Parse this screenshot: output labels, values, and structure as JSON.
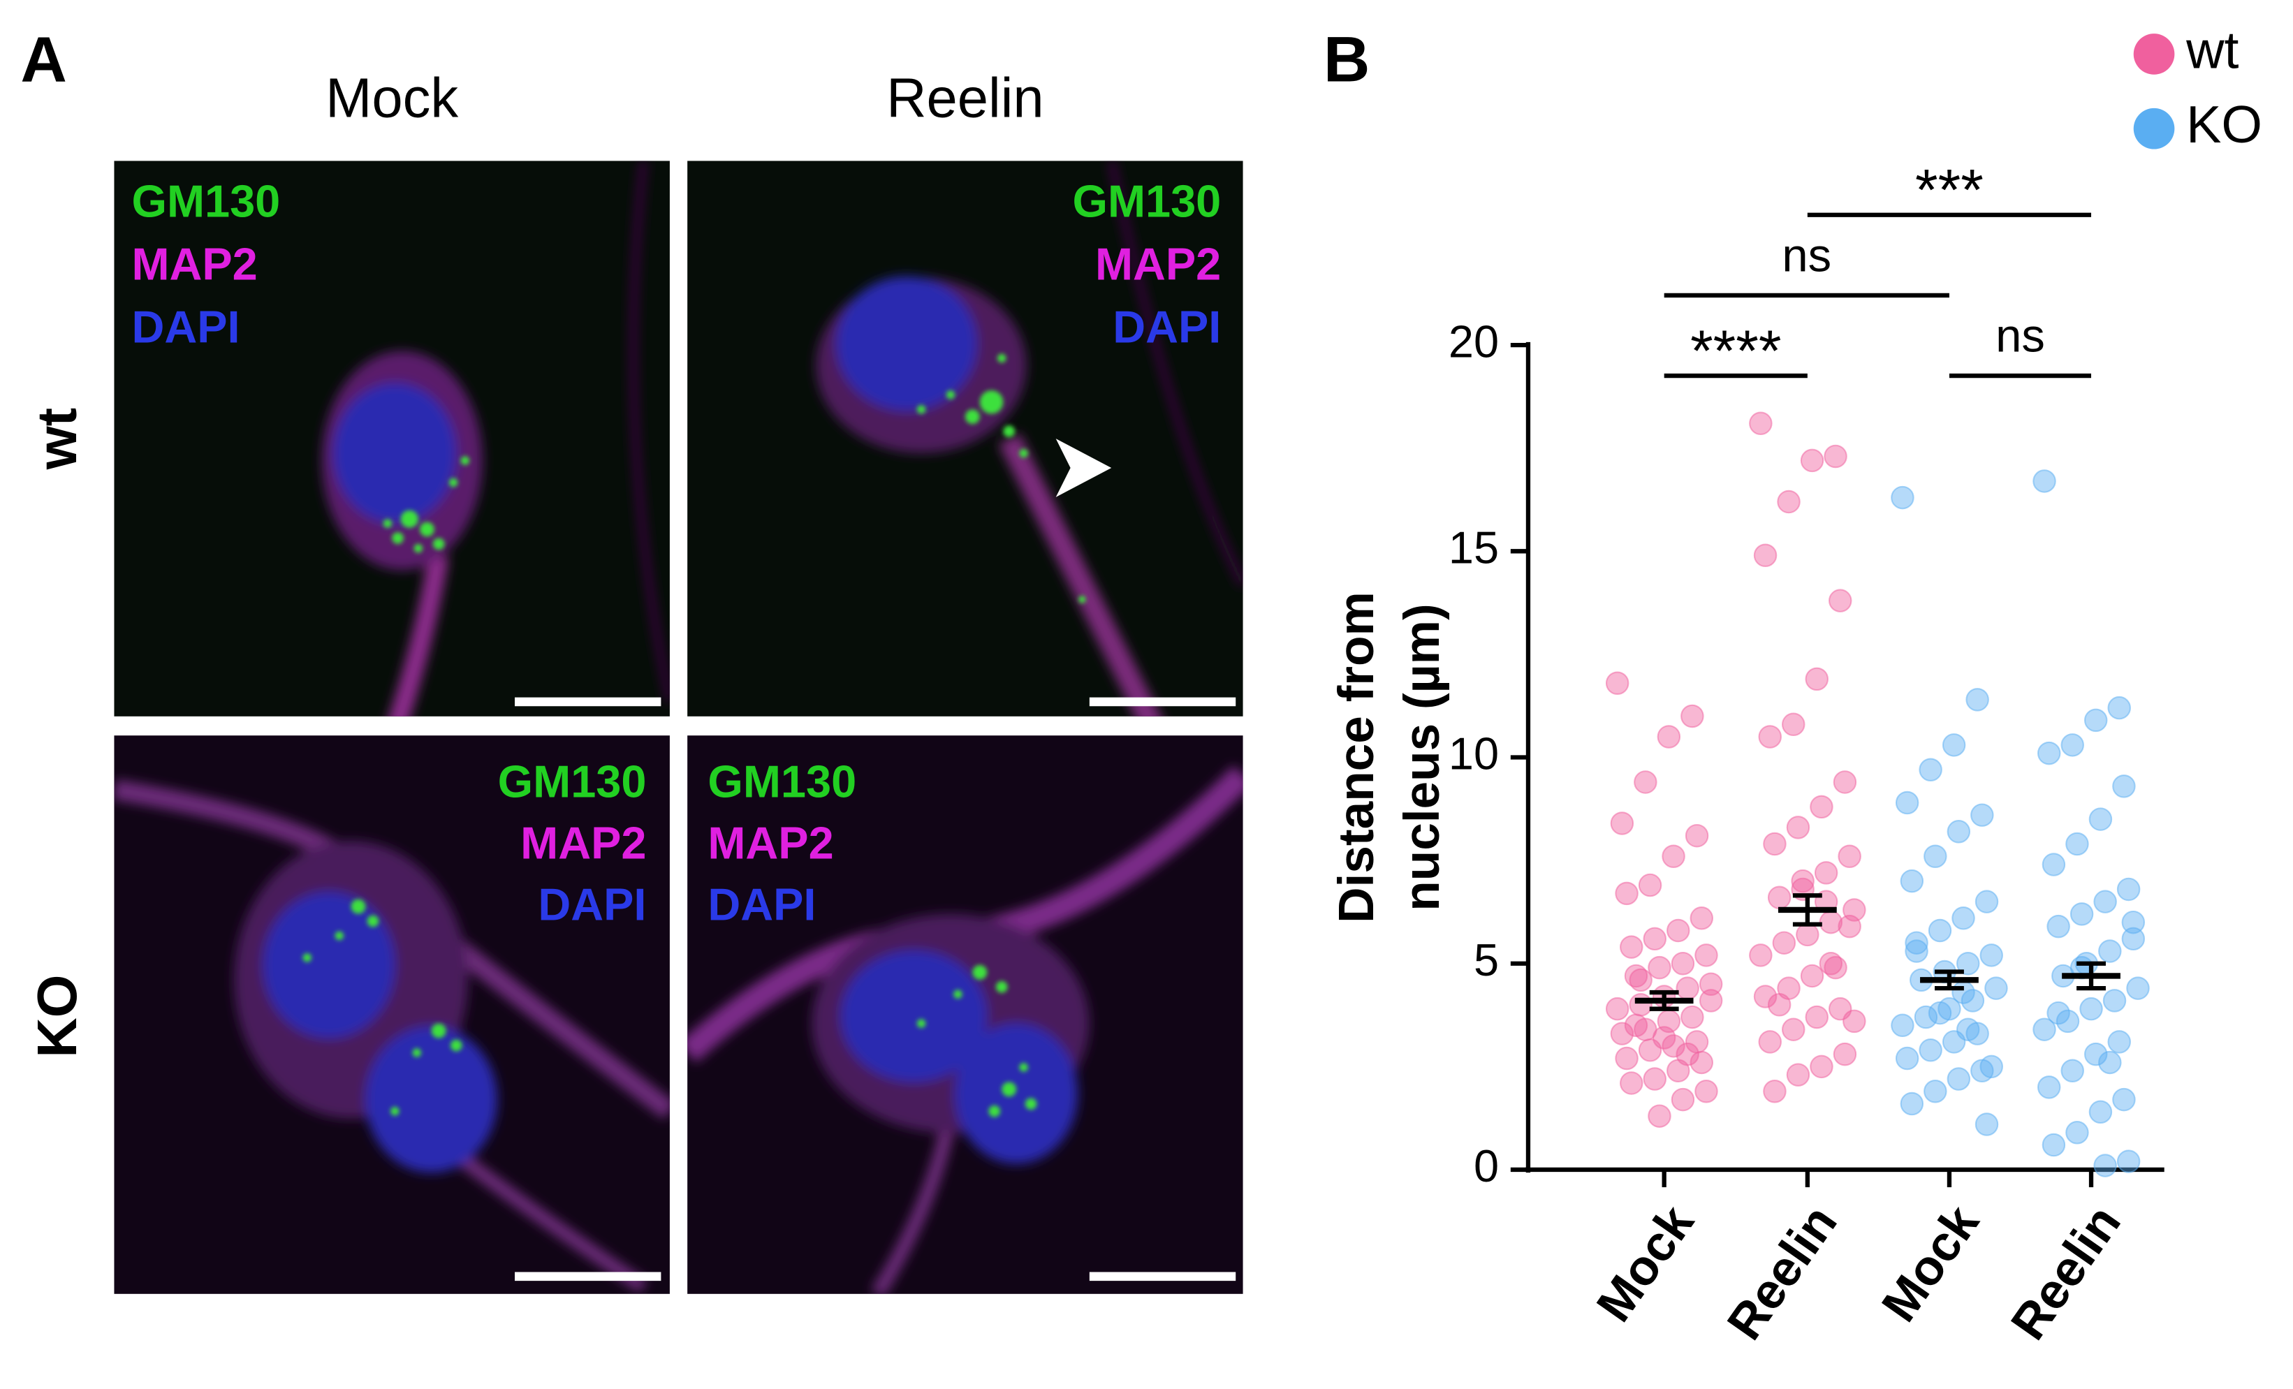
{
  "panel_a": {
    "label": "A",
    "columns": [
      "Mock",
      "Reelin"
    ],
    "rows": [
      "wt",
      "KO"
    ],
    "stains": [
      "GM130",
      "MAP2",
      "DAPI"
    ]
  },
  "chart_data": {
    "type": "strip",
    "panel_label": "B",
    "ylabel": [
      "Distance from",
      "nucleus (µm)"
    ],
    "categories": [
      "Mock",
      "Reelin",
      "Mock",
      "Reelin"
    ],
    "ylim": [
      0,
      20
    ],
    "yticks": [
      0,
      5,
      10,
      15,
      20
    ],
    "legend": "top-right",
    "significance": [
      "****",
      "ns",
      "ns",
      "***"
    ],
    "series": [
      {
        "name": "wt",
        "color": "#f0609e",
        "values": [
          [
            11.8,
            11.0,
            10.5,
            9.4,
            8.4,
            8.1,
            7.6,
            6.9,
            6.7,
            6.1,
            5.8,
            5.6,
            5.4,
            5.2,
            5.0,
            4.9,
            4.7,
            4.5,
            4.4,
            4.2,
            4.0,
            3.9,
            3.7,
            3.6,
            3.4,
            3.3,
            3.1,
            3.0,
            2.9,
            2.7,
            2.6,
            2.4,
            2.2,
            2.1,
            1.9,
            1.7,
            1.3,
            3.5,
            4.1,
            2.8,
            3.2,
            4.6
          ],
          [
            18.1,
            17.3,
            17.2,
            16.2,
            14.9,
            13.8,
            11.9,
            10.8,
            10.5,
            9.4,
            8.8,
            8.3,
            7.9,
            7.6,
            7.2,
            6.8,
            6.6,
            6.3,
            6.0,
            5.7,
            5.5,
            5.2,
            4.9,
            4.7,
            4.4,
            4.2,
            3.9,
            3.7,
            3.4,
            3.1,
            2.8,
            2.5,
            2.3,
            1.9,
            5.9,
            6.5,
            7.0,
            4.0,
            3.6,
            5.0
          ]
        ],
        "mean": [
          4.1,
          6.3
        ],
        "sem": [
          0.2,
          0.35
        ]
      },
      {
        "name": "KO",
        "color": "#5aaef2",
        "values": [
          [
            16.3,
            11.4,
            10.3,
            9.7,
            8.9,
            8.6,
            8.2,
            7.6,
            7.0,
            6.5,
            6.1,
            5.8,
            5.5,
            5.2,
            5.0,
            4.8,
            4.6,
            4.4,
            4.1,
            3.9,
            3.7,
            3.5,
            3.3,
            3.1,
            2.9,
            2.7,
            2.4,
            2.2,
            1.9,
            1.6,
            1.1,
            4.3,
            3.8,
            5.3,
            2.5,
            3.4
          ],
          [
            16.7,
            11.2,
            10.9,
            10.3,
            10.1,
            9.3,
            8.5,
            7.9,
            7.4,
            6.8,
            6.5,
            6.2,
            5.9,
            5.6,
            5.3,
            5.0,
            4.7,
            4.4,
            4.1,
            3.9,
            3.6,
            3.4,
            3.1,
            2.8,
            2.4,
            2.0,
            1.7,
            1.4,
            0.9,
            0.6,
            0.2,
            0.1,
            4.9,
            3.8,
            6.0,
            2.6
          ]
        ],
        "mean": [
          4.6,
          4.7
        ],
        "sem": [
          0.2,
          0.3
        ]
      }
    ]
  }
}
